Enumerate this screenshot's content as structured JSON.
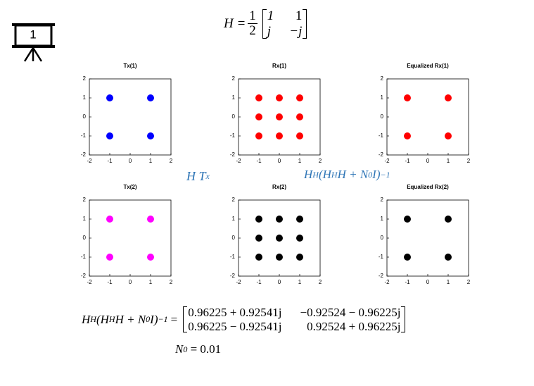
{
  "slide_number": "1",
  "equation_H": {
    "lhs": "H =",
    "num": "1",
    "den": "2",
    "matrix": [
      [
        "1",
        "1"
      ],
      [
        "j",
        "−j"
      ]
    ]
  },
  "label_HTx": {
    "base": "H T",
    "sub": "x"
  },
  "label_equalizer": {
    "pieces": [
      "H",
      "H",
      "(H",
      "H",
      "H + ",
      "N",
      "0",
      "I)",
      "−1"
    ]
  },
  "equation_equalizer": {
    "pieces": [
      "H",
      "H",
      "(H",
      "H",
      "H + ",
      "N",
      "0",
      "I)",
      "−1",
      "="
    ],
    "matrix": [
      [
        "0.96225 + 0.92541j",
        "−0.92524 − 0.96225j"
      ],
      [
        "0.96225 − 0.92541j",
        "0.92524 + 0.96225j"
      ]
    ]
  },
  "equation_N0": {
    "pieces": [
      "N",
      "0",
      " = 0.01"
    ]
  },
  "chart_data": [
    {
      "type": "scatter",
      "title": "Tx(1)",
      "xlim": [
        -2,
        2
      ],
      "ylim": [
        -2,
        2
      ],
      "xticks": [
        -2,
        -1,
        0,
        1,
        2
      ],
      "yticks": [
        -2,
        -1,
        0,
        1,
        2
      ],
      "series": [
        {
          "color": "#0000ff",
          "x": [
            -1,
            1,
            -1,
            1
          ],
          "values": [
            1,
            1,
            -1,
            -1
          ]
        }
      ]
    },
    {
      "type": "scatter",
      "title": "Rx(1)",
      "xlim": [
        -2,
        2
      ],
      "ylim": [
        -2,
        2
      ],
      "xticks": [
        -2,
        -1,
        0,
        1,
        2
      ],
      "yticks": [
        -2,
        -1,
        0,
        1,
        2
      ],
      "series": [
        {
          "color": "#ff0000",
          "x": [
            -1,
            0,
            1,
            -1,
            0,
            1,
            -1,
            0,
            1
          ],
          "values": [
            1,
            1,
            1,
            0,
            0,
            0,
            -1,
            -1,
            -1
          ]
        }
      ]
    },
    {
      "type": "scatter",
      "title": "Equalized Rx(1)",
      "xlim": [
        -2,
        2
      ],
      "ylim": [
        -2,
        2
      ],
      "xticks": [
        -2,
        -1,
        0,
        1,
        2
      ],
      "yticks": [
        -2,
        -1,
        0,
        1,
        2
      ],
      "series": [
        {
          "color": "#ff0000",
          "x": [
            -1,
            1,
            -1,
            1
          ],
          "values": [
            1,
            1,
            -1,
            -1
          ]
        }
      ]
    },
    {
      "type": "scatter",
      "title": "Tx(2)",
      "xlim": [
        -2,
        2
      ],
      "ylim": [
        -2,
        2
      ],
      "xticks": [
        -2,
        -1,
        0,
        1,
        2
      ],
      "yticks": [
        -2,
        -1,
        0,
        1,
        2
      ],
      "series": [
        {
          "color": "#ff00ff",
          "x": [
            -1,
            1,
            -1,
            1
          ],
          "values": [
            1,
            1,
            -1,
            -1
          ]
        }
      ]
    },
    {
      "type": "scatter",
      "title": "Rx(2)",
      "xlim": [
        -2,
        2
      ],
      "ylim": [
        -2,
        2
      ],
      "xticks": [
        -2,
        -1,
        0,
        1,
        2
      ],
      "yticks": [
        -2,
        -1,
        0,
        1,
        2
      ],
      "series": [
        {
          "color": "#000000",
          "x": [
            -1,
            0,
            1,
            -1,
            0,
            1,
            -1,
            0,
            1
          ],
          "values": [
            1,
            1,
            1,
            0,
            0,
            0,
            -1,
            -1,
            -1
          ]
        }
      ]
    },
    {
      "type": "scatter",
      "title": "Equalized Rx(2)",
      "xlim": [
        -2,
        2
      ],
      "ylim": [
        -2,
        2
      ],
      "xticks": [
        -2,
        -1,
        0,
        1,
        2
      ],
      "yticks": [
        -2,
        -1,
        0,
        1,
        2
      ],
      "series": [
        {
          "color": "#000000",
          "x": [
            -1,
            1,
            -1,
            1
          ],
          "values": [
            1,
            1,
            -1,
            -1
          ]
        }
      ]
    }
  ]
}
